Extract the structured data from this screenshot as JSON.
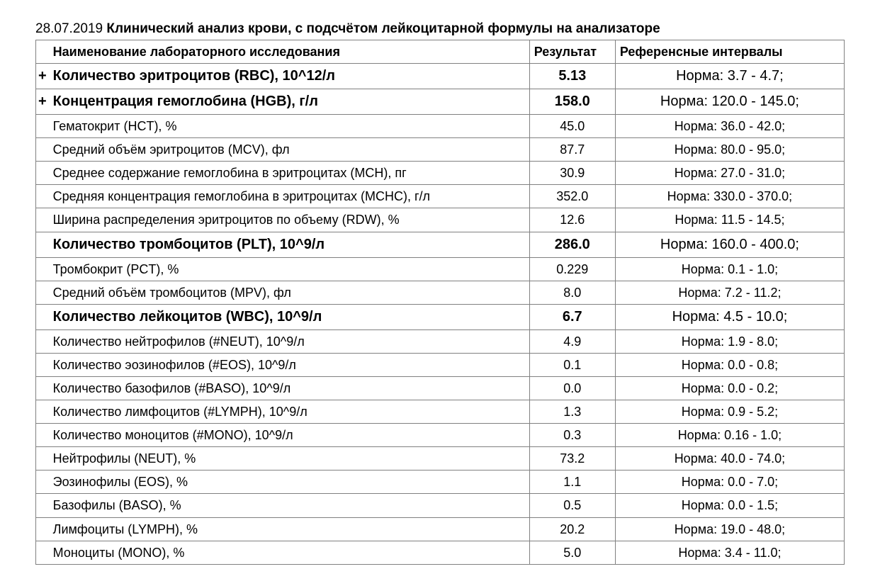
{
  "title_date": "28.07.2019",
  "title_text": "Клинический анализ крови, с подсчётом лейкоцитарной формулы на анализаторе",
  "columns": {
    "name": "Наименование лабораторного исследования",
    "result": "Результат",
    "reference": "Референсные интервалы"
  },
  "rows": [
    {
      "marker": "+",
      "name": "Количество эритроцитов (RBC), 10^12/л",
      "result": "5.13",
      "reference": "Норма:   3.7 - 4.7;",
      "bold": true
    },
    {
      "marker": "+",
      "name": "Концентрация гемоглобина (HGB), г/л",
      "result": "158.0",
      "reference": "Норма:   120.0 - 145.0;",
      "bold": true
    },
    {
      "marker": "",
      "name": "Гематокрит (HCT), %",
      "result": "45.0",
      "reference": "Норма:   36.0 - 42.0;",
      "bold": false
    },
    {
      "marker": "",
      "name": "Средний объём эритроцитов (MCV), фл",
      "result": "87.7",
      "reference": "Норма:   80.0 - 95.0;",
      "bold": false
    },
    {
      "marker": "",
      "name": "Среднее содержание гемоглобина в эритроцитах (MCH), пг",
      "result": "30.9",
      "reference": "Норма:   27.0 - 31.0;",
      "bold": false
    },
    {
      "marker": "",
      "name": "Средняя концентрация гемоглобина в эритроцитах (MCHC), г/л",
      "result": "352.0",
      "reference": "Норма:   330.0 - 370.0;",
      "bold": false
    },
    {
      "marker": "",
      "name": "Ширина распределения эритроцитов по объему (RDW), %",
      "result": "12.6",
      "reference": "Норма:   11.5 - 14.5;",
      "bold": false
    },
    {
      "marker": "",
      "name": "Количество тромбоцитов (PLT), 10^9/л",
      "result": "286.0",
      "reference": "Норма:   160.0 - 400.0;",
      "bold": true
    },
    {
      "marker": "",
      "name": "Тромбокрит (PCT), %",
      "result": "0.229",
      "reference": "Норма:   0.1 - 1.0;",
      "bold": false
    },
    {
      "marker": "",
      "name": "Средний объём тромбоцитов (MPV), фл",
      "result": "8.0",
      "reference": "Норма:   7.2 - 11.2;",
      "bold": false
    },
    {
      "marker": "",
      "name": "Количество лейкоцитов (WBC), 10^9/л",
      "result": "6.7",
      "reference": "Норма:   4.5 - 10.0;",
      "bold": true
    },
    {
      "marker": "",
      "name": "Количество нейтрофилов (#NEUT), 10^9/л",
      "result": "4.9",
      "reference": "Норма:   1.9 - 8.0;",
      "bold": false
    },
    {
      "marker": "",
      "name": "Количество эозинофилов (#EOS), 10^9/л",
      "result": "0.1",
      "reference": "Норма:   0.0 - 0.8;",
      "bold": false
    },
    {
      "marker": "",
      "name": "Количество базофилов (#BASO), 10^9/л",
      "result": "0.0",
      "reference": "Норма:   0.0 - 0.2;",
      "bold": false
    },
    {
      "marker": "",
      "name": "Количество лимфоцитов (#LYMPH), 10^9/л",
      "result": "1.3",
      "reference": "Норма:   0.9 - 5.2;",
      "bold": false
    },
    {
      "marker": "",
      "name": "Количество моноцитов (#MONO), 10^9/л",
      "result": "0.3",
      "reference": "Норма:   0.16 - 1.0;",
      "bold": false
    },
    {
      "marker": "",
      "name": "Нейтрофилы (NEUT), %",
      "result": "73.2",
      "reference": "Норма:   40.0 - 74.0;",
      "bold": false
    },
    {
      "marker": "",
      "name": "Эозинофилы (EOS), %",
      "result": "1.1",
      "reference": "Норма:   0.0 - 7.0;",
      "bold": false
    },
    {
      "marker": "",
      "name": "Базофилы (BASO), %",
      "result": "0.5",
      "reference": "Норма:   0.0 - 1.5;",
      "bold": false
    },
    {
      "marker": "",
      "name": "Лимфоциты (LYMPH), %",
      "result": "20.2",
      "reference": "Норма:   19.0 - 48.0;",
      "bold": false
    },
    {
      "marker": "",
      "name": "Моноциты (MONO), %",
      "result": "5.0",
      "reference": "Норма:   3.4 - 11.0;",
      "bold": false
    }
  ],
  "style": {
    "font_family": "Arial",
    "title_fontsize": 19,
    "header_fontsize": 18,
    "row_fontsize": 18,
    "bold_row_fontsize": 20,
    "border_color": "#808080",
    "text_color": "#000000",
    "background_color": "#ffffff",
    "column_widths": {
      "marker": 18,
      "name": 672,
      "result": 120,
      "reference": 320
    }
  }
}
